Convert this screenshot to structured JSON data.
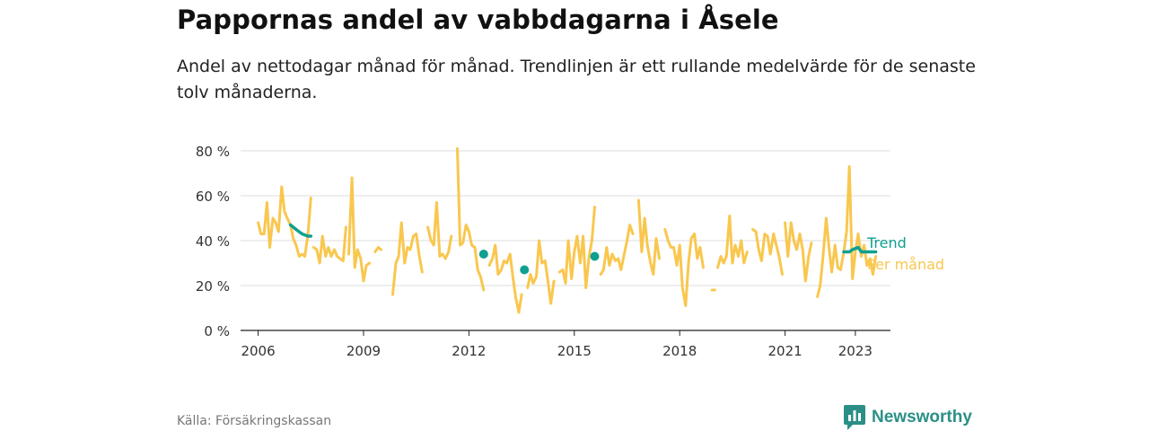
{
  "title": "Pappornas andel av vabbdagarna i Åsele",
  "subtitle": "Andel av nettodagar månad för månad. Trendlinjen är ett rullande medelvärde för de senaste tolv månaderna.",
  "source": "Källa: Försäkringskassan",
  "brand": {
    "name": "Newsworthy",
    "icon": "newsworthy-logo-icon",
    "color": "#2b8f87"
  },
  "chart_data": {
    "type": "line",
    "title": "Pappornas andel av vabbdagarna i Åsele",
    "ylim": [
      0,
      80
    ],
    "yticks": [
      0,
      20,
      40,
      60,
      80
    ],
    "ytick_labels": [
      "0 %",
      "20 %",
      "40 %",
      "60 %",
      "80 %"
    ],
    "xlim": [
      2005.5,
      2024.0
    ],
    "xticks": [
      2006,
      2009,
      2012,
      2015,
      2018,
      2021,
      2023
    ],
    "xtick_labels": [
      "2006",
      "2009",
      "2012",
      "2015",
      "2018",
      "2021",
      "2023"
    ],
    "grid": true,
    "legend": "right-end-labels",
    "series": [
      {
        "name": "Per månad",
        "color": "#f9c74f",
        "segments": [
          [
            [
              2006.0,
              48
            ],
            [
              2006.08,
              43
            ],
            [
              2006.17,
              43
            ],
            [
              2006.25,
              57
            ],
            [
              2006.33,
              37
            ],
            [
              2006.42,
              50
            ],
            [
              2006.5,
              48
            ],
            [
              2006.58,
              44
            ],
            [
              2006.67,
              64
            ],
            [
              2006.75,
              53
            ],
            [
              2006.83,
              50
            ],
            [
              2006.92,
              47
            ],
            [
              2007.0,
              41
            ],
            [
              2007.08,
              38
            ],
            [
              2007.17,
              33
            ],
            [
              2007.25,
              34
            ],
            [
              2007.33,
              33
            ],
            [
              2007.42,
              43
            ],
            [
              2007.5,
              59
            ]
          ],
          [
            [
              2007.58,
              37
            ],
            [
              2007.67,
              36
            ],
            [
              2007.75,
              30
            ],
            [
              2007.83,
              42
            ],
            [
              2007.92,
              33
            ],
            [
              2008.0,
              37
            ],
            [
              2008.08,
              33
            ],
            [
              2008.17,
              36
            ],
            [
              2008.25,
              33
            ],
            [
              2008.33,
              32
            ],
            [
              2008.42,
              31
            ],
            [
              2008.5,
              46
            ]
          ],
          [
            [
              2008.58,
              34
            ],
            [
              2008.67,
              68
            ],
            [
              2008.75,
              28
            ],
            [
              2008.83,
              36
            ],
            [
              2008.92,
              32
            ],
            [
              2009.0,
              22
            ],
            [
              2009.08,
              29
            ],
            [
              2009.17,
              30
            ]
          ],
          [
            [
              2009.33,
              35
            ],
            [
              2009.42,
              37
            ],
            [
              2009.5,
              36
            ]
          ],
          [
            [
              2009.83,
              16
            ],
            [
              2009.92,
              30
            ],
            [
              2010.0,
              33
            ],
            [
              2010.08,
              48
            ],
            [
              2010.17,
              30
            ],
            [
              2010.25,
              37
            ],
            [
              2010.33,
              36
            ],
            [
              2010.42,
              42
            ],
            [
              2010.5,
              43
            ],
            [
              2010.58,
              34
            ],
            [
              2010.67,
              26
            ]
          ],
          [
            [
              2010.83,
              46
            ],
            [
              2010.92,
              40
            ],
            [
              2011.0,
              38
            ],
            [
              2011.08,
              57
            ],
            [
              2011.17,
              33
            ],
            [
              2011.25,
              34
            ],
            [
              2011.33,
              32
            ],
            [
              2011.42,
              35
            ],
            [
              2011.5,
              42
            ]
          ],
          [
            [
              2011.67,
              81
            ],
            [
              2011.75,
              38
            ],
            [
              2011.83,
              39
            ],
            [
              2011.92,
              47
            ],
            [
              2012.0,
              44
            ],
            [
              2012.08,
              38
            ],
            [
              2012.17,
              37
            ],
            [
              2012.25,
              27
            ],
            [
              2012.33,
              24
            ],
            [
              2012.42,
              18
            ]
          ],
          [
            [
              2012.58,
              29
            ],
            [
              2012.67,
              32
            ],
            [
              2012.75,
              38
            ],
            [
              2012.83,
              25
            ],
            [
              2012.92,
              27
            ],
            [
              2013.0,
              31
            ],
            [
              2013.08,
              30
            ],
            [
              2013.17,
              34
            ],
            [
              2013.25,
              24
            ],
            [
              2013.33,
              15
            ],
            [
              2013.42,
              8
            ],
            [
              2013.5,
              16
            ]
          ],
          [
            [
              2013.67,
              19
            ],
            [
              2013.75,
              25
            ],
            [
              2013.83,
              21
            ],
            [
              2013.92,
              24
            ],
            [
              2014.0,
              40
            ],
            [
              2014.08,
              30
            ],
            [
              2014.17,
              31
            ],
            [
              2014.25,
              22
            ],
            [
              2014.33,
              12
            ],
            [
              2014.42,
              22
            ]
          ],
          [
            [
              2014.58,
              26
            ],
            [
              2014.67,
              27
            ],
            [
              2014.75,
              21
            ],
            [
              2014.83,
              40
            ],
            [
              2014.92,
              23
            ],
            [
              2015.0,
              35
            ],
            [
              2015.08,
              42
            ],
            [
              2015.17,
              30
            ],
            [
              2015.25,
              42
            ],
            [
              2015.33,
              19
            ],
            [
              2015.42,
              33
            ],
            [
              2015.5,
              40
            ],
            [
              2015.58,
              55
            ]
          ],
          [
            [
              2015.75,
              25
            ],
            [
              2015.83,
              27
            ],
            [
              2015.92,
              37
            ],
            [
              2016.0,
              29
            ],
            [
              2016.08,
              34
            ],
            [
              2016.17,
              31
            ],
            [
              2016.25,
              32
            ],
            [
              2016.33,
              27
            ],
            [
              2016.42,
              34
            ],
            [
              2016.5,
              40
            ],
            [
              2016.58,
              47
            ],
            [
              2016.67,
              43
            ]
          ],
          [
            [
              2016.83,
              58
            ],
            [
              2016.92,
              35
            ],
            [
              2017.0,
              50
            ],
            [
              2017.08,
              38
            ],
            [
              2017.17,
              30
            ],
            [
              2017.25,
              25
            ],
            [
              2017.33,
              41
            ],
            [
              2017.42,
              32
            ]
          ],
          [
            [
              2017.58,
              45
            ],
            [
              2017.67,
              40
            ],
            [
              2017.75,
              37
            ],
            [
              2017.83,
              37
            ],
            [
              2017.92,
              29
            ],
            [
              2018.0,
              38
            ],
            [
              2018.08,
              19
            ],
            [
              2018.17,
              11
            ],
            [
              2018.25,
              30
            ],
            [
              2018.33,
              41
            ],
            [
              2018.42,
              43
            ],
            [
              2018.5,
              32
            ],
            [
              2018.58,
              37
            ],
            [
              2018.67,
              28
            ]
          ],
          [
            [
              2018.92,
              18
            ],
            [
              2019.0,
              18
            ]
          ],
          [
            [
              2019.08,
              28
            ],
            [
              2019.17,
              33
            ],
            [
              2019.25,
              30
            ],
            [
              2019.33,
              33
            ],
            [
              2019.42,
              51
            ],
            [
              2019.5,
              30
            ],
            [
              2019.58,
              38
            ],
            [
              2019.67,
              33
            ],
            [
              2019.75,
              40
            ],
            [
              2019.83,
              30
            ],
            [
              2019.92,
              35
            ]
          ],
          [
            [
              2020.08,
              45
            ],
            [
              2020.17,
              44
            ],
            [
              2020.25,
              36
            ],
            [
              2020.33,
              31
            ],
            [
              2020.42,
              43
            ],
            [
              2020.5,
              42
            ],
            [
              2020.58,
              34
            ],
            [
              2020.67,
              43
            ],
            [
              2020.75,
              38
            ],
            [
              2020.83,
              33
            ],
            [
              2020.92,
              25
            ]
          ],
          [
            [
              2021.0,
              48
            ],
            [
              2021.08,
              33
            ],
            [
              2021.17,
              48
            ],
            [
              2021.25,
              40
            ],
            [
              2021.33,
              36
            ],
            [
              2021.42,
              43
            ],
            [
              2021.5,
              36
            ],
            [
              2021.58,
              22
            ],
            [
              2021.67,
              33
            ],
            [
              2021.75,
              39
            ]
          ],
          [
            [
              2021.92,
              15
            ],
            [
              2022.0,
              20
            ],
            [
              2022.08,
              33
            ],
            [
              2022.17,
              50
            ],
            [
              2022.25,
              37
            ],
            [
              2022.33,
              26
            ],
            [
              2022.42,
              38
            ],
            [
              2022.5,
              28
            ],
            [
              2022.58,
              27
            ],
            [
              2022.67,
              35
            ],
            [
              2022.75,
              44
            ],
            [
              2022.83,
              73
            ],
            [
              2022.92,
              23
            ],
            [
              2023.0,
              35
            ],
            [
              2023.08,
              43
            ],
            [
              2023.17,
              33
            ],
            [
              2023.25,
              38
            ],
            [
              2023.33,
              29
            ],
            [
              2023.42,
              32
            ],
            [
              2023.5,
              25
            ],
            [
              2023.58,
              33
            ]
          ]
        ]
      },
      {
        "name": "Trend",
        "color": "#0fa090",
        "segments": [
          [
            [
              2006.92,
              47
            ],
            [
              2007.08,
              45
            ],
            [
              2007.25,
              43
            ],
            [
              2007.42,
              42
            ],
            [
              2007.5,
              42
            ]
          ],
          [
            [
              2012.42,
              34
            ]
          ],
          [
            [
              2013.58,
              27
            ]
          ],
          [
            [
              2015.58,
              33
            ]
          ],
          [
            [
              2022.67,
              35
            ],
            [
              2022.83,
              35
            ],
            [
              2022.92,
              36
            ],
            [
              2023.08,
              37
            ],
            [
              2023.17,
              35
            ],
            [
              2023.33,
              35
            ],
            [
              2023.5,
              35
            ],
            [
              2023.58,
              35
            ]
          ]
        ]
      }
    ]
  }
}
